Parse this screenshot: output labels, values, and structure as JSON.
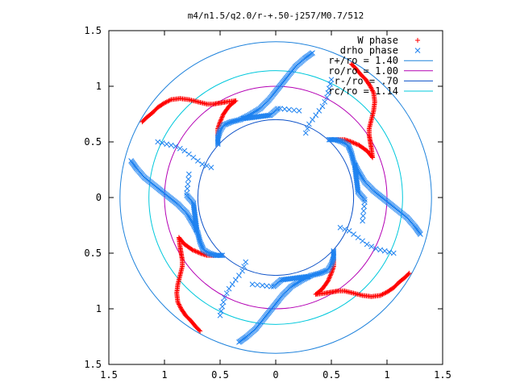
{
  "chart_data": {
    "type": "scatter",
    "title": "m4/n1.5/q2.0/r-+.50-j257/M0.7/512",
    "xlabel": "",
    "ylabel": "",
    "xlim": [
      -1.5,
      1.5
    ],
    "ylim": [
      -1.5,
      1.5
    ],
    "x_ticks": [
      -1.5,
      -1,
      -0.5,
      0,
      0.5,
      1,
      1.5
    ],
    "x_tick_labels": [
      "1.5",
      "1",
      "0.5",
      "0",
      "0.5",
      "1",
      "1.5"
    ],
    "y_ticks": [
      1.5,
      1,
      0.5,
      0,
      -0.5,
      -1,
      -1.5
    ],
    "y_tick_labels": [
      "1.5",
      "1",
      "0.5",
      "0",
      "0.5",
      "1",
      "1.5"
    ],
    "grid": false,
    "legend_position": "top-right",
    "symmetry": 4,
    "series": [
      {
        "name": "W phase",
        "marker": "+",
        "color": "#ff0000",
        "arms": [
          [
            [
              0.87,
              0.36
            ],
            [
              0.86,
              0.44
            ],
            [
              0.85,
              0.5
            ],
            [
              0.84,
              0.56
            ],
            [
              0.84,
              0.62
            ],
            [
              0.86,
              0.7
            ],
            [
              0.88,
              0.78
            ],
            [
              0.89,
              0.86
            ],
            [
              0.88,
              0.94
            ],
            [
              0.85,
              1.0
            ],
            [
              0.81,
              1.06
            ],
            [
              0.76,
              1.11
            ],
            [
              0.72,
              1.16
            ],
            [
              0.68,
              1.2
            ]
          ],
          [
            [
              0.87,
              0.36
            ],
            [
              0.82,
              0.42
            ],
            [
              0.75,
              0.47
            ],
            [
              0.68,
              0.5
            ],
            [
              0.62,
              0.52
            ],
            [
              0.55,
              0.52
            ]
          ]
        ]
      },
      {
        "name": "drho phase",
        "marker": "x",
        "color": "#1e82f0",
        "arms": [
          [
            [
              0.48,
              0.52
            ],
            [
              0.54,
              0.52
            ],
            [
              0.6,
              0.5
            ],
            [
              0.65,
              0.47
            ],
            [
              0.68,
              0.4
            ],
            [
              0.7,
              0.32
            ],
            [
              0.74,
              0.24
            ],
            [
              0.8,
              0.14
            ],
            [
              0.88,
              0.06
            ],
            [
              0.98,
              -0.02
            ],
            [
              1.08,
              -0.1
            ],
            [
              1.18,
              -0.18
            ],
            [
              1.25,
              -0.26
            ],
            [
              1.3,
              -0.33
            ]
          ],
          [
            [
              0.71,
              0.29
            ],
            [
              0.74,
              0.05
            ],
            [
              0.8,
              -0.02
            ]
          ],
          [
            [
              0.27,
              0.58
            ],
            [
              0.3,
              0.66
            ],
            [
              0.36,
              0.74
            ],
            [
              0.42,
              0.82
            ],
            [
              0.46,
              0.9
            ],
            [
              0.48,
              0.98
            ],
            [
              0.5,
              1.06
            ]
          ],
          [
            [
              0.21,
              0.78
            ],
            [
              0.12,
              0.79
            ],
            [
              0.04,
              0.8
            ]
          ]
        ]
      },
      {
        "name": "r+/ro = 1.40",
        "type": "circle",
        "radius": 1.4,
        "color": "#1e82dc"
      },
      {
        "name": "ro/ro = 1.00",
        "type": "circle",
        "radius": 1.0,
        "color": "#b400b4"
      },
      {
        "name": "r-/ro = .70",
        "type": "circle",
        "radius": 0.7,
        "color": "#0a50c8"
      },
      {
        "name": "rc/ro = 1.14",
        "type": "circle",
        "radius": 1.14,
        "color": "#00c8dc"
      }
    ]
  }
}
